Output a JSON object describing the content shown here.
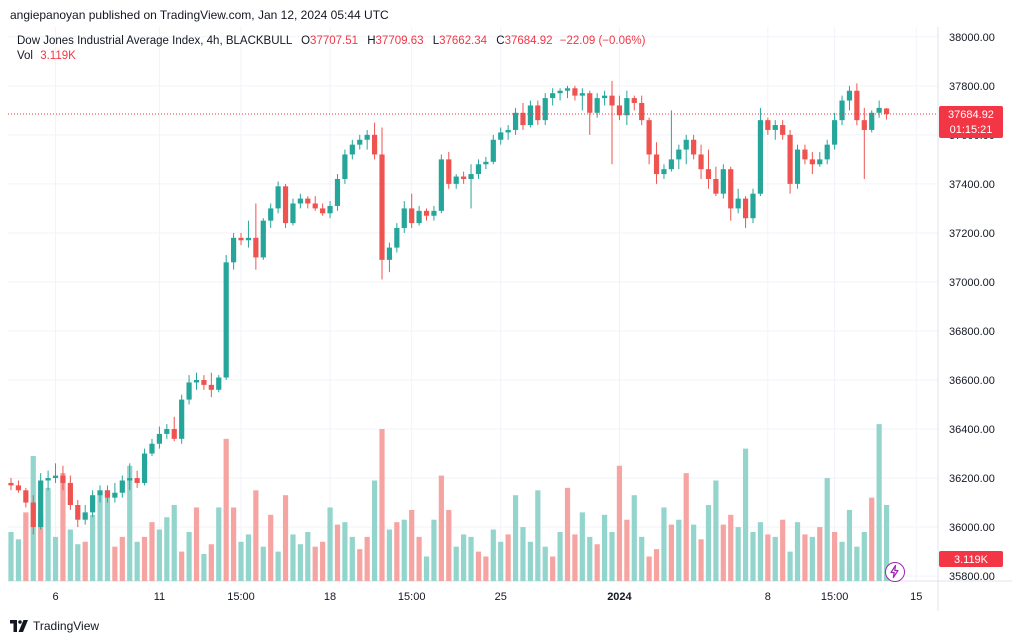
{
  "publisher": "angiepanoyan published on TradingView.com, Jan 12, 2024 05:44 UTC",
  "footer": {
    "brand": "TradingView"
  },
  "legend": {
    "symbol": "Dow Jones Industrial Average Index, 4h, BLACKBULL",
    "o_label": "O",
    "o": "37707.51",
    "h_label": "H",
    "h": "37709.63",
    "l_label": "L",
    "l": "37662.34",
    "c_label": "C",
    "c": "37684.92",
    "change": "−22.09 (−0.06%)",
    "vol_label": "Vol",
    "vol": "3.119K"
  },
  "colors": {
    "up": "#26a69a",
    "down": "#ef5350",
    "vol_up": "#93d5cd",
    "vol_down": "#f5a4a2",
    "grid": "#f0f3fa",
    "price_line": "#f23645",
    "text": "#131722"
  },
  "price_tag": {
    "price": "37684.92",
    "countdown": "01:15:21"
  },
  "volume_tag": "3.119K",
  "chart_data": {
    "type": "candlestick",
    "symbol": "Dow Jones Industrial Average Index",
    "interval": "4h",
    "y_ticks": [
      "38000.00",
      "37800.00",
      "37600.00",
      "37400.00",
      "37200.00",
      "37000.00",
      "36800.00",
      "36600.00",
      "36400.00",
      "36200.00",
      "36000.00",
      "35800.00"
    ],
    "x_ticks": [
      {
        "label": "6",
        "bold": false
      },
      {
        "label": "11",
        "bold": false
      },
      {
        "label": "15:00",
        "bold": false
      },
      {
        "label": "18",
        "bold": false
      },
      {
        "label": "15:00",
        "bold": false
      },
      {
        "label": "25",
        "bold": false
      },
      {
        "label": "2024",
        "bold": true
      },
      {
        "label": "8",
        "bold": false
      },
      {
        "label": "15:00",
        "bold": false
      },
      {
        "label": "15",
        "bold": false
      }
    ],
    "ylim": [
      35780,
      38040
    ],
    "last_price": 37684.92,
    "candles": [
      [
        36180,
        36200,
        36150,
        36170
      ],
      [
        36170,
        36190,
        36140,
        36150
      ],
      [
        36150,
        36160,
        36080,
        36100
      ],
      [
        36100,
        36130,
        35970,
        36000
      ],
      [
        36000,
        36220,
        35990,
        36190
      ],
      [
        36190,
        36230,
        36150,
        36200
      ],
      [
        36200,
        36260,
        36180,
        36210
      ],
      [
        36210,
        36250,
        36150,
        36180
      ],
      [
        36180,
        36210,
        36070,
        36090
      ],
      [
        36090,
        36110,
        36000,
        36030
      ],
      [
        36030,
        36090,
        36010,
        36060
      ],
      [
        36060,
        36150,
        36040,
        36130
      ],
      [
        36130,
        36170,
        36100,
        36150
      ],
      [
        36150,
        36170,
        36100,
        36120
      ],
      [
        36120,
        36180,
        36100,
        36140
      ],
      [
        36140,
        36210,
        36120,
        36190
      ],
      [
        36190,
        36260,
        36150,
        36200
      ],
      [
        36200,
        36230,
        36160,
        36180
      ],
      [
        36180,
        36320,
        36170,
        36300
      ],
      [
        36300,
        36360,
        36290,
        36340
      ],
      [
        36340,
        36410,
        36320,
        36380
      ],
      [
        36380,
        36420,
        36360,
        36400
      ],
      [
        36400,
        36450,
        36350,
        36360
      ],
      [
        36360,
        36540,
        36340,
        36520
      ],
      [
        36520,
        36620,
        36500,
        36590
      ],
      [
        36590,
        36630,
        36560,
        36600
      ],
      [
        36600,
        36620,
        36560,
        36580
      ],
      [
        36580,
        36630,
        36530,
        36560
      ],
      [
        36560,
        36620,
        36550,
        36610
      ],
      [
        36610,
        37110,
        36600,
        37080
      ],
      [
        37080,
        37200,
        37050,
        37180
      ],
      [
        37180,
        37200,
        37150,
        37170
      ],
      [
        37170,
        37250,
        37140,
        37180
      ],
      [
        37180,
        37320,
        37050,
        37100
      ],
      [
        37100,
        37260,
        37090,
        37250
      ],
      [
        37250,
        37320,
        37220,
        37300
      ],
      [
        37300,
        37410,
        37280,
        37390
      ],
      [
        37390,
        37400,
        37220,
        37240
      ],
      [
        37240,
        37340,
        37230,
        37320
      ],
      [
        37320,
        37360,
        37300,
        37340
      ],
      [
        37340,
        37350,
        37300,
        37320
      ],
      [
        37320,
        37350,
        37290,
        37300
      ],
      [
        37300,
        37320,
        37270,
        37280
      ],
      [
        37280,
        37330,
        37260,
        37310
      ],
      [
        37310,
        37440,
        37290,
        37420
      ],
      [
        37420,
        37540,
        37400,
        37520
      ],
      [
        37520,
        37580,
        37500,
        37560
      ],
      [
        37560,
        37600,
        37540,
        37580
      ],
      [
        37580,
        37620,
        37540,
        37600
      ],
      [
        37600,
        37650,
        37500,
        37520
      ],
      [
        37520,
        37630,
        37010,
        37090
      ],
      [
        37090,
        37160,
        37040,
        37140
      ],
      [
        37140,
        37240,
        37120,
        37220
      ],
      [
        37220,
        37330,
        37200,
        37300
      ],
      [
        37300,
        37360,
        37220,
        37240
      ],
      [
        37240,
        37310,
        37230,
        37290
      ],
      [
        37290,
        37300,
        37250,
        37270
      ],
      [
        37270,
        37310,
        37250,
        37290
      ],
      [
        37290,
        37520,
        37280,
        37500
      ],
      [
        37500,
        37530,
        37380,
        37400
      ],
      [
        37400,
        37440,
        37380,
        37430
      ],
      [
        37430,
        37450,
        37400,
        37420
      ],
      [
        37420,
        37480,
        37300,
        37440
      ],
      [
        37440,
        37500,
        37420,
        37480
      ],
      [
        37480,
        37510,
        37460,
        37490
      ],
      [
        37490,
        37600,
        37480,
        37580
      ],
      [
        37580,
        37630,
        37560,
        37610
      ],
      [
        37610,
        37640,
        37580,
        37620
      ],
      [
        37620,
        37710,
        37600,
        37690
      ],
      [
        37690,
        37730,
        37620,
        37640
      ],
      [
        37640,
        37740,
        37630,
        37720
      ],
      [
        37720,
        37740,
        37640,
        37660
      ],
      [
        37660,
        37770,
        37640,
        37750
      ],
      [
        37750,
        37790,
        37720,
        37770
      ],
      [
        37770,
        37790,
        37740,
        37780
      ],
      [
        37780,
        37800,
        37750,
        37790
      ],
      [
        37790,
        37800,
        37740,
        37760
      ],
      [
        37760,
        37790,
        37700,
        37770
      ],
      [
        37770,
        37780,
        37600,
        37690
      ],
      [
        37690,
        37770,
        37670,
        37750
      ],
      [
        37750,
        37780,
        37720,
        37760
      ],
      [
        37760,
        37820,
        37480,
        37720
      ],
      [
        37720,
        37760,
        37660,
        37680
      ],
      [
        37680,
        37780,
        37640,
        37750
      ],
      [
        37750,
        37760,
        37700,
        37730
      ],
      [
        37730,
        37760,
        37640,
        37660
      ],
      [
        37660,
        37670,
        37480,
        37520
      ],
      [
        37520,
        37570,
        37400,
        37440
      ],
      [
        37440,
        37480,
        37420,
        37460
      ],
      [
        37460,
        37700,
        37450,
        37500
      ],
      [
        37500,
        37560,
        37460,
        37540
      ],
      [
        37540,
        37600,
        37480,
        37580
      ],
      [
        37580,
        37600,
        37500,
        37520
      ],
      [
        37520,
        37560,
        37420,
        37460
      ],
      [
        37460,
        37540,
        37380,
        37420
      ],
      [
        37420,
        37470,
        37350,
        37360
      ],
      [
        37360,
        37480,
        37340,
        37460
      ],
      [
        37460,
        37470,
        37250,
        37300
      ],
      [
        37300,
        37380,
        37280,
        37340
      ],
      [
        37340,
        37350,
        37220,
        37260
      ],
      [
        37260,
        37380,
        37240,
        37360
      ],
      [
        37360,
        37710,
        37350,
        37660
      ],
      [
        37660,
        37670,
        37600,
        37620
      ],
      [
        37620,
        37660,
        37580,
        37640
      ],
      [
        37640,
        37660,
        37580,
        37600
      ],
      [
        37600,
        37620,
        37360,
        37400
      ],
      [
        37400,
        37560,
        37380,
        37540
      ],
      [
        37540,
        37560,
        37480,
        37500
      ],
      [
        37500,
        37530,
        37440,
        37480
      ],
      [
        37480,
        37530,
        37470,
        37500
      ],
      [
        37500,
        37580,
        37480,
        37560
      ],
      [
        37560,
        37690,
        37540,
        37660
      ],
      [
        37660,
        37760,
        37640,
        37740
      ],
      [
        37740,
        37800,
        37700,
        37780
      ],
      [
        37780,
        37810,
        37640,
        37660
      ],
      [
        37660,
        37710,
        37420,
        37620
      ],
      [
        37620,
        37700,
        37610,
        37690
      ],
      [
        37690,
        37740,
        37670,
        37710
      ],
      [
        37707.51,
        37709.63,
        37662.34,
        37684.92
      ]
    ],
    "volume": [
      [
        35980,
        "u"
      ],
      [
        35950,
        "u"
      ],
      [
        36060,
        "d"
      ],
      [
        36290,
        "u"
      ],
      [
        36040,
        "d"
      ],
      [
        36160,
        "u"
      ],
      [
        35960,
        "u"
      ],
      [
        36220,
        "d"
      ],
      [
        35990,
        "u"
      ],
      [
        35930,
        "u"
      ],
      [
        35940,
        "d"
      ],
      [
        36050,
        "u"
      ],
      [
        36140,
        "u"
      ],
      [
        36150,
        "u"
      ],
      [
        35920,
        "d"
      ],
      [
        35960,
        "d"
      ],
      [
        36250,
        "u"
      ],
      [
        35940,
        "u"
      ],
      [
        35960,
        "d"
      ],
      [
        36020,
        "d"
      ],
      [
        35990,
        "u"
      ],
      [
        36040,
        "u"
      ],
      [
        36090,
        "u"
      ],
      [
        35900,
        "d"
      ],
      [
        35980,
        "u"
      ],
      [
        36080,
        "d"
      ],
      [
        35890,
        "u"
      ],
      [
        35930,
        "d"
      ],
      [
        36080,
        "u"
      ],
      [
        36360,
        "d"
      ],
      [
        36080,
        "d"
      ],
      [
        35940,
        "u"
      ],
      [
        35970,
        "u"
      ],
      [
        36150,
        "d"
      ],
      [
        35920,
        "u"
      ],
      [
        36050,
        "d"
      ],
      [
        35900,
        "u"
      ],
      [
        36130,
        "d"
      ],
      [
        35970,
        "u"
      ],
      [
        35930,
        "u"
      ],
      [
        35980,
        "u"
      ],
      [
        35920,
        "d"
      ],
      [
        35940,
        "d"
      ],
      [
        36080,
        "u"
      ],
      [
        36010,
        "d"
      ],
      [
        36020,
        "u"
      ],
      [
        35960,
        "u"
      ],
      [
        35910,
        "d"
      ],
      [
        35960,
        "d"
      ],
      [
        36190,
        "u"
      ],
      [
        36400,
        "d"
      ],
      [
        35990,
        "u"
      ],
      [
        36020,
        "d"
      ],
      [
        36030,
        "u"
      ],
      [
        36070,
        "d"
      ],
      [
        35960,
        "d"
      ],
      [
        35880,
        "u"
      ],
      [
        36030,
        "u"
      ],
      [
        36210,
        "d"
      ],
      [
        36070,
        "d"
      ],
      [
        35920,
        "u"
      ],
      [
        35970,
        "u"
      ],
      [
        35960,
        "u"
      ],
      [
        35900,
        "d"
      ],
      [
        35880,
        "d"
      ],
      [
        35990,
        "u"
      ],
      [
        35940,
        "u"
      ],
      [
        35970,
        "d"
      ],
      [
        36130,
        "u"
      ],
      [
        36000,
        "u"
      ],
      [
        35940,
        "u"
      ],
      [
        36150,
        "u"
      ],
      [
        35920,
        "u"
      ],
      [
        35880,
        "d"
      ],
      [
        35980,
        "u"
      ],
      [
        36160,
        "d"
      ],
      [
        35970,
        "d"
      ],
      [
        36060,
        "u"
      ],
      [
        35960,
        "u"
      ],
      [
        35930,
        "d"
      ],
      [
        36050,
        "u"
      ],
      [
        35980,
        "u"
      ],
      [
        36250,
        "d"
      ],
      [
        36030,
        "d"
      ],
      [
        36130,
        "u"
      ],
      [
        35960,
        "u"
      ],
      [
        35880,
        "d"
      ],
      [
        35910,
        "d"
      ],
      [
        36080,
        "u"
      ],
      [
        36010,
        "d"
      ],
      [
        36030,
        "u"
      ],
      [
        36220,
        "d"
      ],
      [
        36010,
        "u"
      ],
      [
        35950,
        "d"
      ],
      [
        36090,
        "u"
      ],
      [
        36190,
        "u"
      ],
      [
        36010,
        "d"
      ],
      [
        36050,
        "d"
      ],
      [
        36000,
        "u"
      ],
      [
        36320,
        "u"
      ],
      [
        35980,
        "u"
      ],
      [
        36020,
        "u"
      ],
      [
        35970,
        "d"
      ],
      [
        35960,
        "u"
      ],
      [
        36030,
        "d"
      ],
      [
        35900,
        "u"
      ],
      [
        36020,
        "u"
      ],
      [
        35970,
        "d"
      ],
      [
        35960,
        "u"
      ],
      [
        36000,
        "d"
      ],
      [
        36200,
        "u"
      ],
      [
        35980,
        "d"
      ],
      [
        35940,
        "u"
      ],
      [
        36070,
        "u"
      ],
      [
        35920,
        "u"
      ],
      [
        35980,
        "u"
      ],
      [
        36120,
        "d"
      ],
      [
        36420,
        "u"
      ],
      [
        36090,
        "u"
      ],
      [
        35880,
        "u"
      ]
    ]
  }
}
